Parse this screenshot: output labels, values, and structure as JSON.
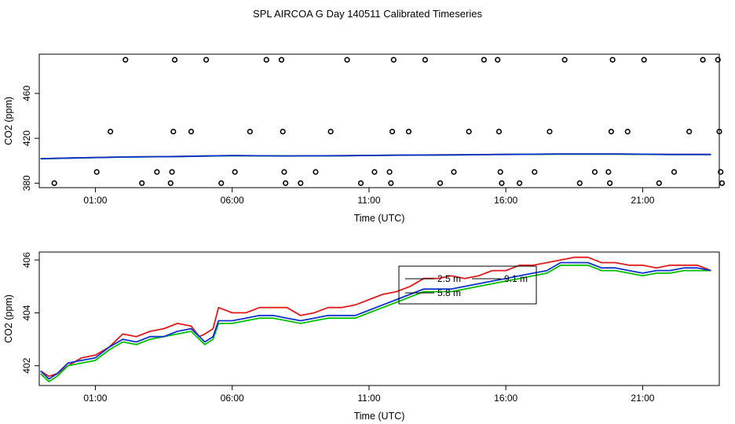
{
  "chart_data": [
    {
      "type": "scatter",
      "title": "SPL AIRCOA G  Day 140511  Calibrated Timeseries",
      "xlabel": "Time (UTC)",
      "ylabel": "CO2 (ppm)",
      "xlim": [
        -1.05,
        23.8
      ],
      "ylim": [
        376,
        495
      ],
      "xticks": [
        1,
        6,
        11,
        16,
        21
      ],
      "xtick_labels": [
        "01:00",
        "06:00",
        "11:00",
        "16:00",
        "21:00"
      ],
      "yticks": [
        380,
        420,
        460
      ],
      "ytick_labels": [
        "380",
        "420",
        "460"
      ],
      "circles": [
        {
          "x": -0.5,
          "y": 380
        },
        {
          "x": 1.05,
          "y": 390
        },
        {
          "x": 1.55,
          "y": 426
        },
        {
          "x": 2.1,
          "y": 490
        },
        {
          "x": 2.7,
          "y": 380
        },
        {
          "x": 3.25,
          "y": 390
        },
        {
          "x": 3.75,
          "y": 380
        },
        {
          "x": 3.8,
          "y": 390
        },
        {
          "x": 3.85,
          "y": 426
        },
        {
          "x": 3.9,
          "y": 490
        },
        {
          "x": 4.5,
          "y": 426
        },
        {
          "x": 5.05,
          "y": 490
        },
        {
          "x": 5.6,
          "y": 380
        },
        {
          "x": 6.1,
          "y": 390
        },
        {
          "x": 6.65,
          "y": 426
        },
        {
          "x": 7.25,
          "y": 490
        },
        {
          "x": 7.8,
          "y": 490
        },
        {
          "x": 7.85,
          "y": 426
        },
        {
          "x": 7.9,
          "y": 390
        },
        {
          "x": 7.95,
          "y": 380
        },
        {
          "x": 8.5,
          "y": 380
        },
        {
          "x": 9.05,
          "y": 390
        },
        {
          "x": 9.6,
          "y": 426
        },
        {
          "x": 10.2,
          "y": 490
        },
        {
          "x": 10.7,
          "y": 380
        },
        {
          "x": 11.2,
          "y": 390
        },
        {
          "x": 11.75,
          "y": 390
        },
        {
          "x": 11.8,
          "y": 380
        },
        {
          "x": 11.85,
          "y": 426
        },
        {
          "x": 11.9,
          "y": 490
        },
        {
          "x": 12.45,
          "y": 426
        },
        {
          "x": 13.05,
          "y": 490
        },
        {
          "x": 13.6,
          "y": 380
        },
        {
          "x": 14.1,
          "y": 390
        },
        {
          "x": 14.65,
          "y": 426
        },
        {
          "x": 15.2,
          "y": 490
        },
        {
          "x": 15.7,
          "y": 490
        },
        {
          "x": 15.75,
          "y": 426
        },
        {
          "x": 15.8,
          "y": 390
        },
        {
          "x": 15.85,
          "y": 380
        },
        {
          "x": 16.5,
          "y": 380
        },
        {
          "x": 17.05,
          "y": 390
        },
        {
          "x": 17.6,
          "y": 426
        },
        {
          "x": 18.15,
          "y": 490
        },
        {
          "x": 18.7,
          "y": 380
        },
        {
          "x": 19.25,
          "y": 390
        },
        {
          "x": 19.75,
          "y": 390
        },
        {
          "x": 19.8,
          "y": 380
        },
        {
          "x": 19.85,
          "y": 426
        },
        {
          "x": 19.9,
          "y": 490
        },
        {
          "x": 20.45,
          "y": 426
        },
        {
          "x": 21.05,
          "y": 490
        },
        {
          "x": 21.6,
          "y": 380
        },
        {
          "x": 22.15,
          "y": 390
        },
        {
          "x": 22.7,
          "y": 426
        },
        {
          "x": 23.2,
          "y": 490
        },
        {
          "x": 23.75,
          "y": 490
        },
        {
          "x": 23.8,
          "y": 426
        },
        {
          "x": 23.85,
          "y": 390
        },
        {
          "x": 23.9,
          "y": 380
        }
      ],
      "series": [
        {
          "name": "2.5 m",
          "color": "#e31a1c",
          "x": [
            -1,
            0,
            2,
            4,
            6,
            8,
            10,
            12,
            14,
            16,
            18,
            20,
            22,
            23.5
          ],
          "values": [
            401.8,
            402.4,
            403.4,
            403.8,
            404.6,
            404.3,
            404.5,
            405.0,
            405.3,
            405.7,
            406.0,
            406.0,
            405.6,
            405.6
          ]
        },
        {
          "name": "5.8 m",
          "color": "#00c000",
          "x": [
            -1,
            0,
            2,
            4,
            6,
            8,
            10,
            12,
            14,
            16,
            18,
            20,
            22,
            23.5
          ],
          "values": [
            401.7,
            402.3,
            403.3,
            403.7,
            404.5,
            404.2,
            404.4,
            404.9,
            405.2,
            405.6,
            405.9,
            405.9,
            405.5,
            405.5
          ]
        },
        {
          "name": "9.1 m",
          "color": "#1030d0",
          "x": [
            -1,
            0,
            2,
            4,
            6,
            8,
            10,
            12,
            14,
            16,
            18,
            20,
            22,
            23.5
          ],
          "values": [
            401.8,
            402.4,
            403.3,
            403.8,
            404.6,
            404.3,
            404.5,
            405.0,
            405.2,
            405.6,
            406.0,
            406.0,
            405.6,
            405.6
          ]
        }
      ]
    },
    {
      "type": "line",
      "xlabel": "Time (UTC)",
      "ylabel": "CO2 (ppm)",
      "xlim": [
        -1.05,
        23.8
      ],
      "ylim": [
        401.25,
        406.3
      ],
      "xticks": [
        1,
        6,
        11,
        16,
        21
      ],
      "xtick_labels": [
        "01:00",
        "06:00",
        "11:00",
        "16:00",
        "21:00"
      ],
      "yticks": [
        402,
        404,
        406
      ],
      "ytick_labels": [
        "402",
        "404",
        "406"
      ],
      "legend": "top-center",
      "series": [
        {
          "name": "2.5 m",
          "color": "#e31a1c",
          "x": [
            -1,
            -0.7,
            -0.4,
            0,
            0.5,
            1.0,
            1.5,
            2.0,
            2.5,
            3.0,
            3.5,
            4.0,
            4.5,
            4.8,
            5.0,
            5.3,
            5.5,
            6.0,
            6.5,
            7.0,
            7.5,
            8.0,
            8.5,
            9.0,
            9.5,
            10.0,
            10.5,
            11.0,
            11.5,
            12.0,
            12.5,
            13.0,
            13.5,
            14.0,
            14.5,
            15.0,
            15.5,
            16.0,
            16.5,
            17.0,
            17.5,
            18.0,
            18.5,
            19.0,
            19.5,
            20.0,
            20.5,
            21.0,
            21.5,
            22.0,
            22.5,
            23.0,
            23.5
          ],
          "values": [
            401.8,
            401.6,
            401.7,
            402.0,
            402.3,
            402.4,
            402.7,
            403.2,
            403.1,
            403.3,
            403.4,
            403.6,
            403.5,
            403.1,
            403.2,
            403.4,
            404.2,
            404.0,
            404.0,
            404.2,
            404.2,
            404.2,
            403.9,
            404.0,
            404.2,
            404.2,
            404.3,
            404.5,
            404.7,
            404.8,
            405.0,
            405.3,
            405.3,
            405.4,
            405.3,
            405.4,
            405.6,
            405.6,
            405.8,
            405.8,
            405.9,
            406.0,
            406.1,
            406.1,
            405.9,
            405.9,
            405.8,
            405.8,
            405.7,
            405.8,
            405.8,
            405.8,
            405.6
          ]
        },
        {
          "name": "5.8 m",
          "color": "#00c000",
          "x": [
            -1,
            -0.7,
            -0.4,
            0,
            0.5,
            1.0,
            1.5,
            2.0,
            2.5,
            3.0,
            3.5,
            4.0,
            4.5,
            4.8,
            5.0,
            5.3,
            5.5,
            6.0,
            6.5,
            7.0,
            7.5,
            8.0,
            8.5,
            9.0,
            9.5,
            10.0,
            10.5,
            11.0,
            11.5,
            12.0,
            12.5,
            13.0,
            13.5,
            14.0,
            14.5,
            15.0,
            15.5,
            16.0,
            16.5,
            17.0,
            17.5,
            18.0,
            18.5,
            19.0,
            19.5,
            20.0,
            20.5,
            21.0,
            21.5,
            22.0,
            22.5,
            23.0,
            23.5
          ],
          "values": [
            401.7,
            401.4,
            401.6,
            402.0,
            402.1,
            402.2,
            402.6,
            402.9,
            402.8,
            403.0,
            403.1,
            403.2,
            403.3,
            403.0,
            402.8,
            403.0,
            403.6,
            403.6,
            403.7,
            403.8,
            403.8,
            403.7,
            403.6,
            403.7,
            403.8,
            403.8,
            403.8,
            404.0,
            404.2,
            404.4,
            404.6,
            404.8,
            404.8,
            404.8,
            404.9,
            405.0,
            405.1,
            405.2,
            405.3,
            405.4,
            405.5,
            405.8,
            405.8,
            405.8,
            405.6,
            405.6,
            405.5,
            405.4,
            405.5,
            405.5,
            405.6,
            405.6,
            405.6
          ]
        },
        {
          "name": "9.1 m",
          "color": "#1030d0",
          "x": [
            -1,
            -0.7,
            -0.4,
            0,
            0.5,
            1.0,
            1.5,
            2.0,
            2.5,
            3.0,
            3.5,
            4.0,
            4.5,
            4.8,
            5.0,
            5.3,
            5.5,
            6.0,
            6.5,
            7.0,
            7.5,
            8.0,
            8.5,
            9.0,
            9.5,
            10.0,
            10.5,
            11.0,
            11.5,
            12.0,
            12.5,
            13.0,
            13.5,
            14.0,
            14.5,
            15.0,
            15.5,
            16.0,
            16.5,
            17.0,
            17.5,
            18.0,
            18.5,
            19.0,
            19.5,
            20.0,
            20.5,
            21.0,
            21.5,
            22.0,
            22.5,
            23.0,
            23.5
          ],
          "values": [
            401.8,
            401.5,
            401.7,
            402.1,
            402.2,
            402.3,
            402.7,
            403.0,
            402.9,
            403.1,
            403.1,
            403.3,
            403.4,
            403.1,
            402.9,
            403.1,
            403.7,
            403.7,
            403.8,
            403.9,
            403.9,
            403.8,
            403.7,
            403.8,
            403.9,
            403.9,
            403.9,
            404.1,
            404.3,
            404.5,
            404.7,
            404.9,
            404.9,
            404.9,
            405.0,
            405.1,
            405.2,
            405.3,
            405.4,
            405.5,
            405.6,
            405.9,
            405.9,
            405.9,
            405.7,
            405.7,
            405.6,
            405.5,
            405.6,
            405.6,
            405.7,
            405.7,
            405.6
          ]
        }
      ]
    }
  ]
}
